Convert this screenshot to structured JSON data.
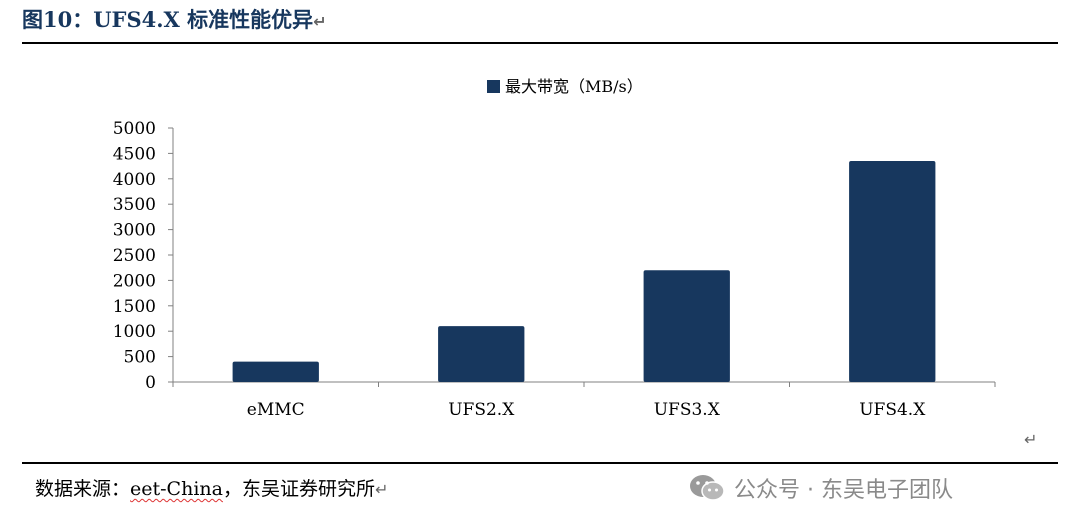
{
  "figure": {
    "title": "图10：UFS4.X 标准性能优异",
    "return_mark": "↵"
  },
  "source": {
    "label": "数据来源：",
    "name": "eet-China",
    "rest": "，东吴证券研究所"
  },
  "watermark": {
    "text": "公众号 · 东吴电子团队",
    "icon": "wechat-icon"
  },
  "colors": {
    "bar": "#17375e",
    "title": "#17375e"
  },
  "chart_data": {
    "type": "bar",
    "categories": [
      "eMMC",
      "UFS2.X",
      "UFS3.X",
      "UFS4.X"
    ],
    "series": [
      {
        "name": "最大带宽（MB/s）",
        "values": [
          400,
          1100,
          2200,
          4350
        ]
      }
    ],
    "yticks": [
      "0",
      "500",
      "1000",
      "1500",
      "2000",
      "2500",
      "3000",
      "3500",
      "4000",
      "4500",
      "5000"
    ],
    "ylim": [
      0,
      5000
    ],
    "legend_position": "top-center",
    "grid": false
  }
}
